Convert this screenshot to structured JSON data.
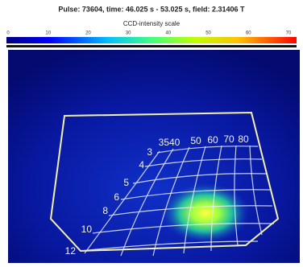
{
  "header": {
    "title": "Pulse: 73604, time: 46.025 s - 53.025 s, field: 2.31406 T",
    "scale_label": "CCD-intensity scale",
    "scale_ticks": [
      "0",
      "10",
      "20",
      "30",
      "40",
      "50",
      "60",
      "70"
    ]
  },
  "overlay": {
    "top_labels": [
      "3540",
      "50",
      "60",
      "70",
      "80"
    ],
    "side_labels": [
      "3",
      "4",
      "5",
      "6",
      "8",
      "10",
      "12"
    ]
  }
}
